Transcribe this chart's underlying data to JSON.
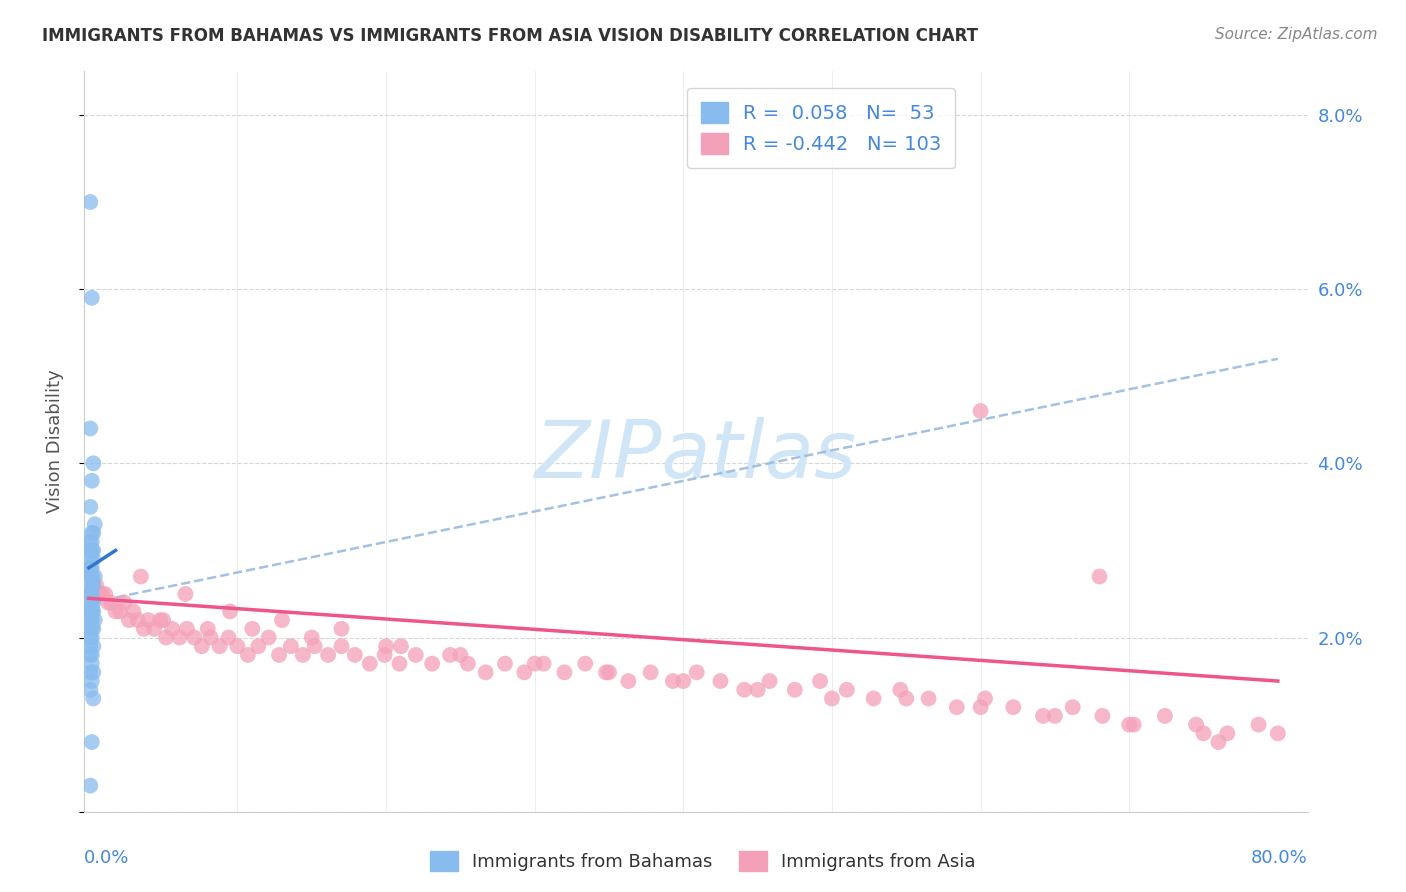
{
  "title": "IMMIGRANTS FROM BAHAMAS VS IMMIGRANTS FROM ASIA VISION DISABILITY CORRELATION CHART",
  "source": "Source: ZipAtlas.com",
  "ylabel": "Vision Disability",
  "ylim": [
    0.0,
    0.085
  ],
  "xlim": [
    -0.003,
    0.82
  ],
  "bahamas_R": 0.058,
  "bahamas_N": 53,
  "asia_R": -0.442,
  "asia_N": 103,
  "bahamas_color": "#88bbee",
  "asia_color": "#f4a0b8",
  "bahamas_line_color": "#3377cc",
  "asia_line_color": "#ee5588",
  "dashed_line_color": "#99bbdd",
  "background_color": "#ffffff",
  "watermark_color": "#d0e5f5",
  "grid_color": "#cccccc",
  "right_tick_color": "#4488dd",
  "title_color": "#333333",
  "ylabel_color": "#555555",
  "source_color": "#888888",
  "yticks": [
    0.0,
    0.02,
    0.04,
    0.06,
    0.08
  ],
  "ytick_labels": [
    "",
    "2.0%",
    "4.0%",
    "6.0%",
    "8.0%"
  ],
  "bahamas_x": [
    0.001,
    0.002,
    0.001,
    0.003,
    0.002,
    0.001,
    0.004,
    0.003,
    0.002,
    0.001,
    0.002,
    0.003,
    0.001,
    0.002,
    0.001,
    0.003,
    0.002,
    0.001,
    0.004,
    0.002,
    0.001,
    0.002,
    0.003,
    0.001,
    0.002,
    0.001,
    0.003,
    0.002,
    0.001,
    0.002,
    0.001,
    0.002,
    0.003,
    0.001,
    0.002,
    0.004,
    0.001,
    0.002,
    0.003,
    0.001,
    0.002,
    0.001,
    0.003,
    0.002,
    0.001,
    0.002,
    0.003,
    0.001,
    0.002,
    0.001,
    0.003,
    0.002,
    0.001
  ],
  "bahamas_y": [
    0.07,
    0.059,
    0.044,
    0.04,
    0.038,
    0.035,
    0.033,
    0.032,
    0.032,
    0.031,
    0.031,
    0.03,
    0.03,
    0.03,
    0.029,
    0.029,
    0.028,
    0.028,
    0.027,
    0.027,
    0.027,
    0.026,
    0.026,
    0.025,
    0.025,
    0.025,
    0.024,
    0.024,
    0.024,
    0.023,
    0.023,
    0.023,
    0.023,
    0.022,
    0.022,
    0.022,
    0.021,
    0.021,
    0.021,
    0.02,
    0.02,
    0.019,
    0.019,
    0.018,
    0.018,
    0.017,
    0.016,
    0.016,
    0.015,
    0.014,
    0.013,
    0.008,
    0.003
  ],
  "asia_x": [
    0.001,
    0.002,
    0.003,
    0.005,
    0.007,
    0.009,
    0.011,
    0.013,
    0.015,
    0.018,
    0.021,
    0.024,
    0.027,
    0.03,
    0.033,
    0.037,
    0.04,
    0.044,
    0.048,
    0.052,
    0.056,
    0.061,
    0.066,
    0.071,
    0.076,
    0.082,
    0.088,
    0.094,
    0.1,
    0.107,
    0.114,
    0.121,
    0.128,
    0.136,
    0.144,
    0.152,
    0.161,
    0.17,
    0.179,
    0.189,
    0.199,
    0.209,
    0.22,
    0.231,
    0.243,
    0.255,
    0.267,
    0.28,
    0.293,
    0.306,
    0.32,
    0.334,
    0.348,
    0.363,
    0.378,
    0.393,
    0.409,
    0.425,
    0.441,
    0.458,
    0.475,
    0.492,
    0.51,
    0.528,
    0.546,
    0.565,
    0.584,
    0.603,
    0.622,
    0.642,
    0.662,
    0.682,
    0.703,
    0.724,
    0.745,
    0.766,
    0.787,
    0.8,
    0.05,
    0.08,
    0.11,
    0.15,
    0.2,
    0.25,
    0.3,
    0.35,
    0.4,
    0.45,
    0.5,
    0.55,
    0.6,
    0.65,
    0.7,
    0.75,
    0.035,
    0.065,
    0.095,
    0.13,
    0.17,
    0.21,
    0.6,
    0.68,
    0.76
  ],
  "asia_y": [
    0.028,
    0.027,
    0.026,
    0.026,
    0.025,
    0.025,
    0.025,
    0.024,
    0.024,
    0.023,
    0.023,
    0.024,
    0.022,
    0.023,
    0.022,
    0.021,
    0.022,
    0.021,
    0.022,
    0.02,
    0.021,
    0.02,
    0.021,
    0.02,
    0.019,
    0.02,
    0.019,
    0.02,
    0.019,
    0.018,
    0.019,
    0.02,
    0.018,
    0.019,
    0.018,
    0.019,
    0.018,
    0.019,
    0.018,
    0.017,
    0.018,
    0.017,
    0.018,
    0.017,
    0.018,
    0.017,
    0.016,
    0.017,
    0.016,
    0.017,
    0.016,
    0.017,
    0.016,
    0.015,
    0.016,
    0.015,
    0.016,
    0.015,
    0.014,
    0.015,
    0.014,
    0.015,
    0.014,
    0.013,
    0.014,
    0.013,
    0.012,
    0.013,
    0.012,
    0.011,
    0.012,
    0.011,
    0.01,
    0.011,
    0.01,
    0.009,
    0.01,
    0.009,
    0.022,
    0.021,
    0.021,
    0.02,
    0.019,
    0.018,
    0.017,
    0.016,
    0.015,
    0.014,
    0.013,
    0.013,
    0.012,
    0.011,
    0.01,
    0.009,
    0.027,
    0.025,
    0.023,
    0.022,
    0.021,
    0.019,
    0.046,
    0.027,
    0.008
  ],
  "dashed_line_x": [
    0.001,
    0.8
  ],
  "dashed_line_y": [
    0.024,
    0.052
  ]
}
